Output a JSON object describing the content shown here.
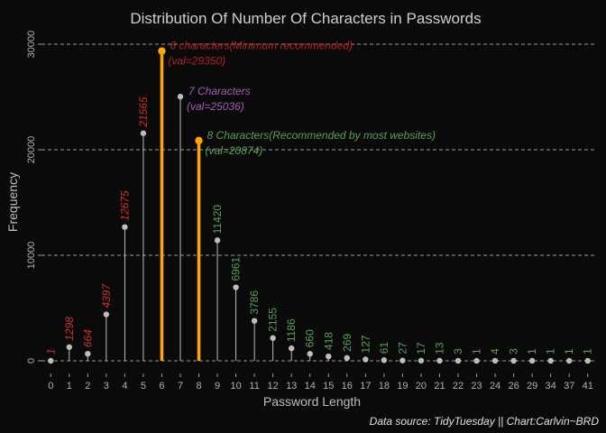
{
  "chart_data": {
    "type": "lollipop",
    "title": "Distribution Of Number Of Characters in Passwords",
    "xlabel": "Password Length",
    "ylabel": "Frequency",
    "caption": "Data source: TidyTuesday || Chart:Carlvin~BRD",
    "ylim": [
      -1200,
      31200
    ],
    "yticks": [
      0,
      10000,
      20000,
      30000
    ],
    "ytick_labels": [
      "0",
      "10000",
      "20000",
      "30000"
    ],
    "categories": [
      "0",
      "1",
      "2",
      "3",
      "4",
      "5",
      "6",
      "7",
      "8",
      "9",
      "10",
      "11",
      "12",
      "13",
      "14",
      "15",
      "16",
      "17",
      "18",
      "19",
      "20",
      "21",
      "22",
      "23",
      "24",
      "26",
      "29",
      "34",
      "37",
      "41"
    ],
    "values": [
      1,
      1298,
      664,
      4397,
      12675,
      21565,
      29350,
      25036,
      20874,
      11420,
      6961,
      3786,
      2155,
      1186,
      660,
      418,
      269,
      127,
      61,
      27,
      17,
      13,
      3,
      1,
      4,
      3,
      1,
      1,
      1,
      1
    ],
    "value_labels": [
      "1",
      "1298",
      "664",
      "4397",
      "12675",
      "21565",
      "",
      "",
      "",
      "11420",
      "6961",
      "3786",
      "2155",
      "1186",
      "660",
      "418",
      "269",
      "127",
      "61",
      "27",
      "17",
      "13",
      "3",
      "1",
      "4",
      "3",
      "1",
      "1",
      "1",
      "1"
    ],
    "highlight_indices": [
      6,
      8
    ],
    "annotations": [
      {
        "index": 6,
        "line1": "6 characters(Minimum recommended)",
        "line2": "(val=29350)",
        "color": "#b22222"
      },
      {
        "index": 7,
        "line1": "7 Characters",
        "line2": "(val=25036)",
        "color": "#a45ab4"
      },
      {
        "index": 8,
        "line1": "8 Characters(Recommended by most websites)",
        "line2": "(val=20874)",
        "color": "#5aa05a"
      }
    ],
    "colors": {
      "short": "#d03030",
      "long": "#5aa05a",
      "highlight": "#ffa500",
      "stem": "#d0d0d0",
      "point": "#bdbdbd"
    }
  }
}
